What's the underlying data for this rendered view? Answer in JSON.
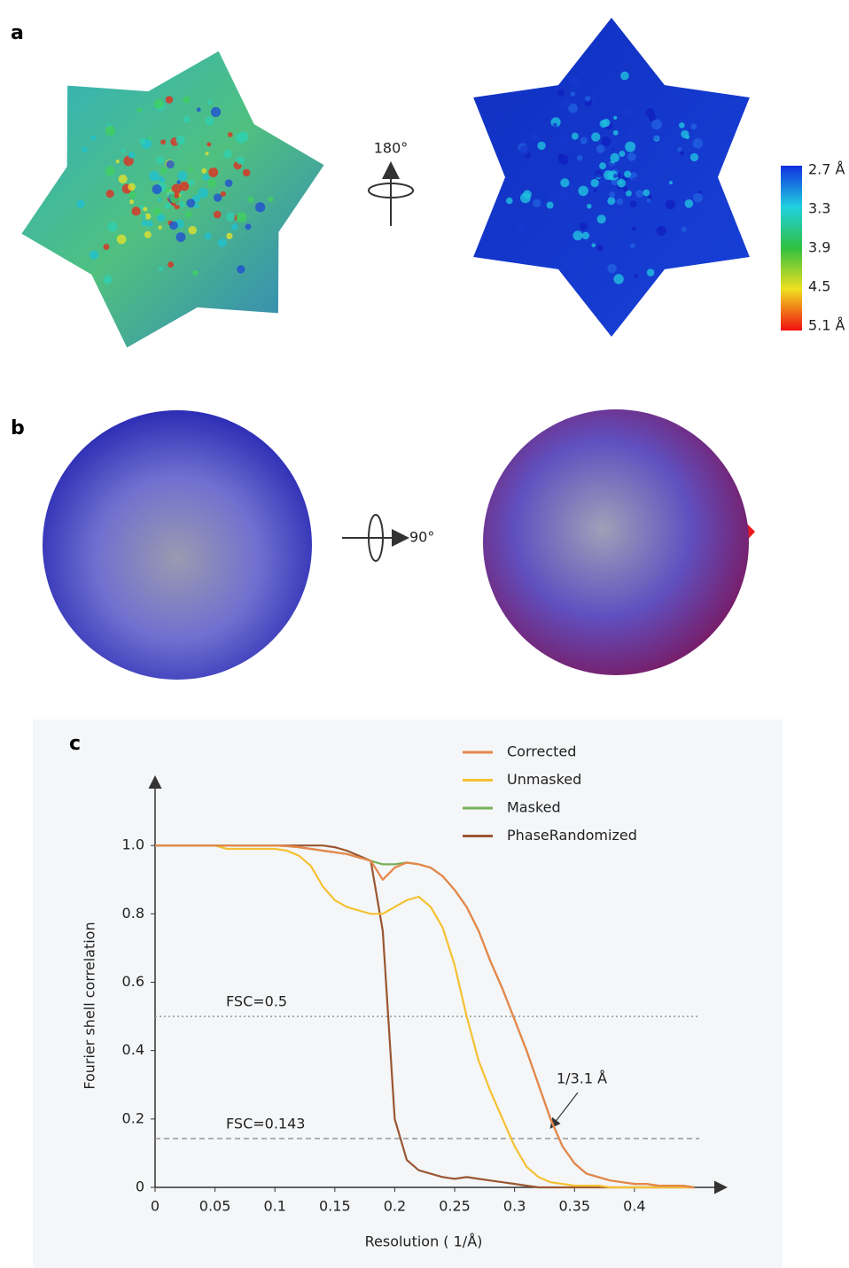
{
  "figure": {
    "panel_a": {
      "label": "a",
      "rotation": "180°",
      "colorbar": [
        "2.7 Å",
        "3.3",
        "3.9",
        "4.5",
        "5.1 Å"
      ]
    },
    "panel_b": {
      "label": "b",
      "rotation": "90°"
    }
  },
  "chart_data": {
    "type": "line",
    "label": "c",
    "x_label": "Resolution ( 1/Å)",
    "y_label": "Fourier shell correlation",
    "annotation": "1/3.1 Å",
    "xlim": [
      0,
      0.46
    ],
    "ylim": [
      0,
      1.2
    ],
    "xticks": [
      0,
      0.05,
      0.1,
      0.15,
      0.2,
      0.25,
      0.3,
      0.35,
      0.4
    ],
    "yticks": [
      0,
      0.2,
      0.4,
      0.6,
      0.8,
      {
        "value": 1,
        "label": "1.0"
      }
    ],
    "hlines": [
      {
        "value": 0.5,
        "label": "FSC=0.5",
        "style": "dotted"
      },
      {
        "value": 0.143,
        "label": "FSC=0.143",
        "style": "dashed"
      }
    ],
    "x": [
      0,
      0.01,
      0.02,
      0.03,
      0.04,
      0.05,
      0.06,
      0.07,
      0.08,
      0.09,
      0.1,
      0.11,
      0.12,
      0.13,
      0.14,
      0.15,
      0.16,
      0.17,
      0.18,
      0.19,
      0.2,
      0.21,
      0.22,
      0.23,
      0.24,
      0.25,
      0.26,
      0.27,
      0.28,
      0.29,
      0.3,
      0.31,
      0.32,
      0.33,
      0.34,
      0.35,
      0.36,
      0.37,
      0.38,
      0.39,
      0.4,
      0.41,
      0.42,
      0.43,
      0.44,
      0.45
    ],
    "series": [
      {
        "name": "Corrected",
        "color": "#e8864a",
        "values": [
          1,
          1,
          1,
          1,
          1,
          1,
          1,
          1,
          1,
          1,
          1,
          0.998,
          0.995,
          0.99,
          0.985,
          0.98,
          0.975,
          0.965,
          0.955,
          0.9,
          0.935,
          0.95,
          0.945,
          0.935,
          0.91,
          0.87,
          0.82,
          0.75,
          0.66,
          0.58,
          0.49,
          0.4,
          0.3,
          0.2,
          0.12,
          0.07,
          0.04,
          0.03,
          0.02,
          0.015,
          0.01,
          0.01,
          0.005,
          0.005,
          0.005,
          0
        ]
      },
      {
        "name": "Unmasked",
        "color": "#f5c132",
        "values": [
          1,
          1,
          1,
          1,
          1,
          1,
          0.99,
          0.99,
          0.99,
          0.99,
          0.99,
          0.985,
          0.97,
          0.94,
          0.88,
          0.84,
          0.82,
          0.81,
          0.8,
          0.8,
          0.82,
          0.84,
          0.85,
          0.82,
          0.76,
          0.65,
          0.5,
          0.37,
          0.28,
          0.2,
          0.12,
          0.06,
          0.03,
          0.015,
          0.01,
          0.005,
          0.005,
          0.005,
          0,
          0,
          0,
          0,
          0,
          0,
          0,
          0
        ]
      },
      {
        "name": "Masked",
        "color": "#78b05a",
        "values": [
          1,
          1,
          1,
          1,
          1,
          1,
          1,
          1,
          1,
          1,
          1,
          0.998,
          0.995,
          0.99,
          0.985,
          0.98,
          0.975,
          0.965,
          0.955,
          0.945,
          0.945,
          0.95,
          0.945,
          0.935,
          0.91,
          0.87,
          0.82,
          0.75,
          0.66,
          0.58,
          0.49,
          0.4,
          0.3,
          0.2,
          0.12,
          0.07,
          0.04,
          0.03,
          0.02,
          0.015,
          0.01,
          0.01,
          0.005,
          0.005,
          0.005,
          0
        ]
      },
      {
        "name": "PhaseRandomized",
        "color": "#9b5630",
        "values": [
          1,
          1,
          1,
          1,
          1,
          1,
          1,
          1,
          1,
          1,
          1,
          1,
          1,
          1,
          1,
          0.995,
          0.985,
          0.97,
          0.955,
          0.75,
          0.2,
          0.08,
          0.05,
          0.04,
          0.03,
          0.025,
          0.03,
          0.025,
          0.02,
          0.015,
          0.01,
          0.005,
          0,
          0,
          0,
          0,
          0,
          0,
          0,
          0,
          0,
          0,
          0,
          0,
          0,
          0
        ]
      }
    ]
  }
}
